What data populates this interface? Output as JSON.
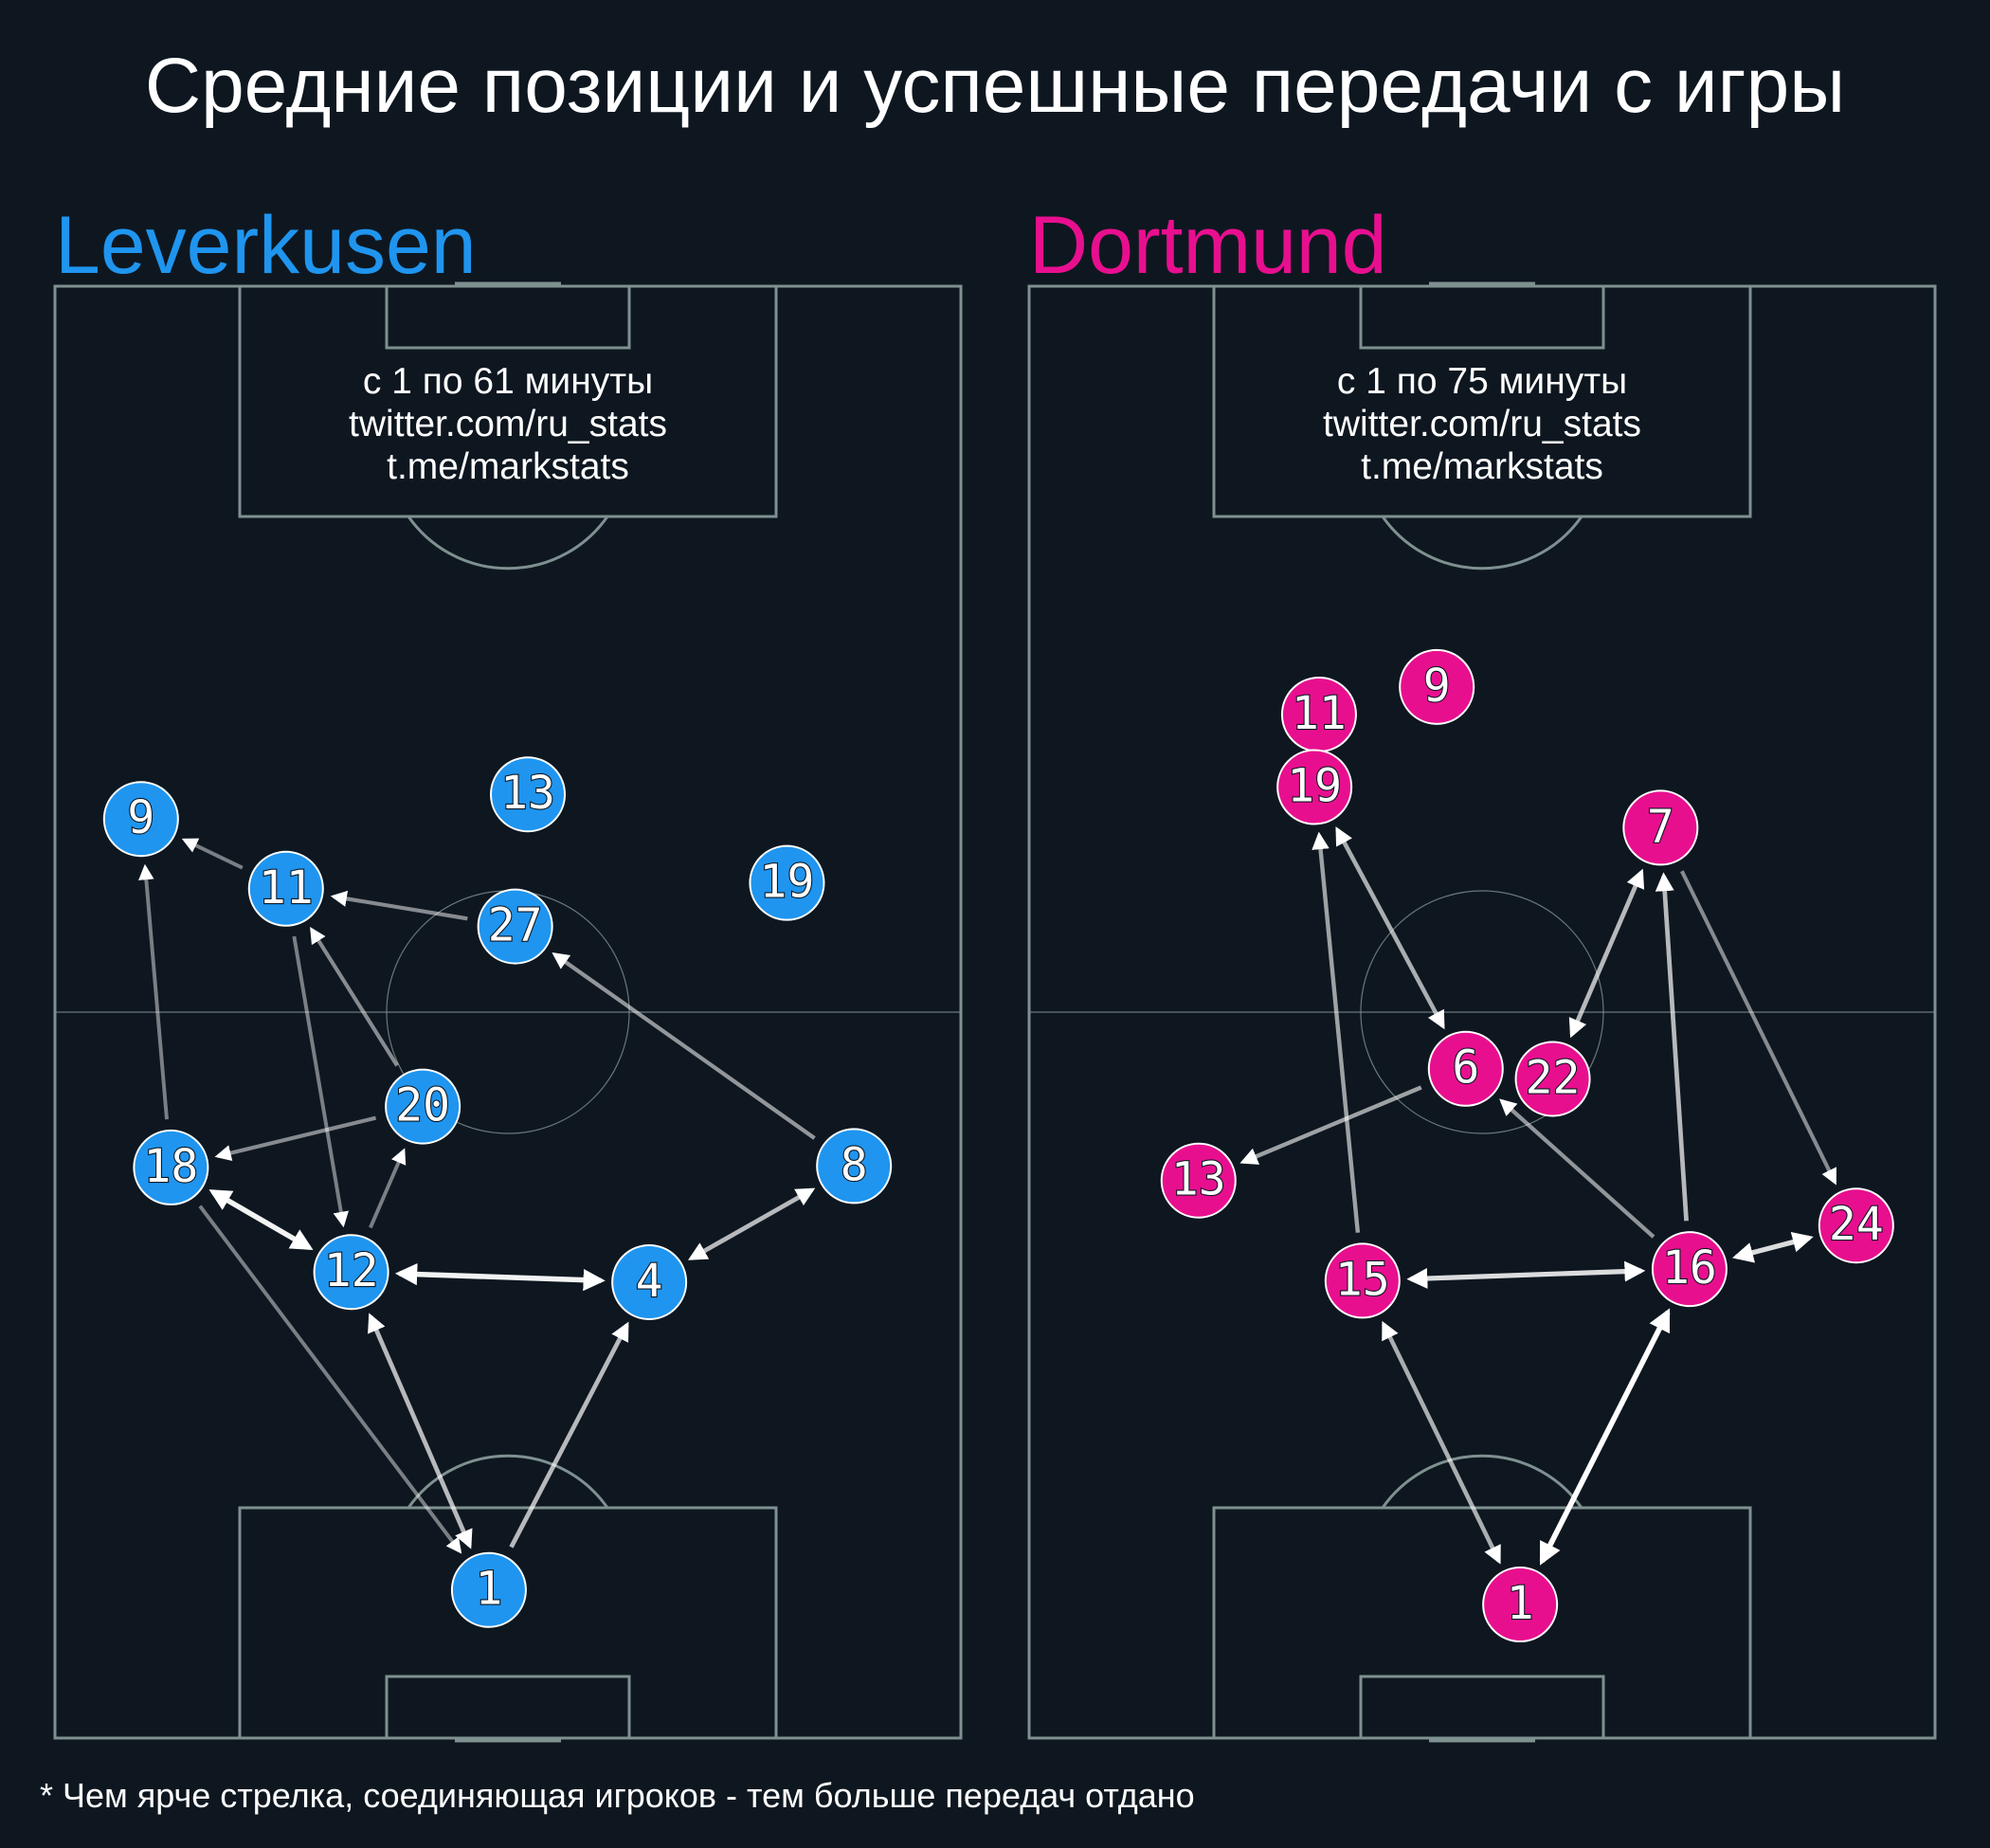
{
  "title": "Средние позиции и успешные передачи с игры",
  "footnote": "* Чем ярче стрелка, соединяющая игроков - тем больше передач отдано",
  "colors": {
    "background": "#0e1720",
    "pitch_lines": "#7f9090",
    "left_team": "#1f95ef",
    "right_team": "#e80f8f",
    "arrow": "#ffffff"
  },
  "chart_data": [
    {
      "type": "pass-network",
      "team": "Leverkusen",
      "color": "#1f95ef",
      "notes": [
        "с 1 по 61 минуты",
        "twitter.com/ru_stats",
        "t.me/markstats"
      ],
      "x_range": [
        0,
        100
      ],
      "y_range": [
        0,
        100
      ],
      "players": [
        {
          "id": "9",
          "x": 9.5,
          "y": 36.7
        },
        {
          "id": "13",
          "x": 52.2,
          "y": 35.0
        },
        {
          "id": "19",
          "x": 80.8,
          "y": 41.1
        },
        {
          "id": "11",
          "x": 25.5,
          "y": 41.5
        },
        {
          "id": "27",
          "x": 50.8,
          "y": 44.1
        },
        {
          "id": "20",
          "x": 40.6,
          "y": 56.5
        },
        {
          "id": "18",
          "x": 12.8,
          "y": 60.7
        },
        {
          "id": "8",
          "x": 88.2,
          "y": 60.6
        },
        {
          "id": "12",
          "x": 32.7,
          "y": 67.9
        },
        {
          "id": "4",
          "x": 65.6,
          "y": 68.6
        },
        {
          "id": "1",
          "x": 47.9,
          "y": 89.8
        }
      ],
      "passes": [
        {
          "from": "18",
          "to": "9",
          "intensity": 0.45
        },
        {
          "from": "11",
          "to": "9",
          "intensity": 0.45
        },
        {
          "from": "27",
          "to": "11",
          "intensity": 0.5
        },
        {
          "from": "20",
          "to": "11",
          "intensity": 0.5
        },
        {
          "from": "11",
          "to": "12",
          "intensity": 0.45
        },
        {
          "from": "8",
          "to": "27",
          "intensity": 0.55
        },
        {
          "from": "20",
          "to": "18",
          "intensity": 0.5
        },
        {
          "from": "12",
          "to": "20",
          "intensity": 0.45
        },
        {
          "from": "18",
          "to": "12",
          "intensity": 0.95,
          "both": true
        },
        {
          "from": "12",
          "to": "4",
          "intensity": 0.95,
          "both": true
        },
        {
          "from": "4",
          "to": "8",
          "intensity": 0.7,
          "both": true
        },
        {
          "from": "18",
          "to": "1",
          "intensity": 0.45
        },
        {
          "from": "1",
          "to": "12",
          "intensity": 0.7,
          "both": true
        },
        {
          "from": "1",
          "to": "4",
          "intensity": 0.7
        }
      ]
    },
    {
      "type": "pass-network",
      "team": "Dortmund",
      "color": "#e80f8f",
      "notes": [
        "с 1 по 75 минуты",
        "twitter.com/ru_stats",
        "t.me/markstats"
      ],
      "x_range": [
        0,
        100
      ],
      "y_range": [
        0,
        100
      ],
      "players": [
        {
          "id": "9",
          "x": 45.0,
          "y": 27.6
        },
        {
          "id": "11",
          "x": 32.0,
          "y": 29.5
        },
        {
          "id": "19",
          "x": 31.5,
          "y": 34.5
        },
        {
          "id": "7",
          "x": 69.7,
          "y": 37.3
        },
        {
          "id": "6",
          "x": 48.2,
          "y": 53.9
        },
        {
          "id": "22",
          "x": 57.8,
          "y": 54.6
        },
        {
          "id": "13",
          "x": 18.7,
          "y": 61.6
        },
        {
          "id": "24",
          "x": 91.3,
          "y": 64.7
        },
        {
          "id": "16",
          "x": 72.9,
          "y": 67.7
        },
        {
          "id": "15",
          "x": 36.8,
          "y": 68.5
        },
        {
          "id": "1",
          "x": 54.2,
          "y": 90.8
        }
      ],
      "passes": [
        {
          "from": "15",
          "to": "19",
          "intensity": 0.6
        },
        {
          "from": "19",
          "to": "6",
          "intensity": 0.65,
          "both": true
        },
        {
          "from": "6",
          "to": "13",
          "intensity": 0.6
        },
        {
          "from": "16",
          "to": "6",
          "intensity": 0.55
        },
        {
          "from": "7",
          "to": "22",
          "intensity": 0.7,
          "both": true
        },
        {
          "from": "16",
          "to": "7",
          "intensity": 0.7
        },
        {
          "from": "7",
          "to": "24",
          "intensity": 0.5
        },
        {
          "from": "16",
          "to": "24",
          "intensity": 0.85,
          "both": true
        },
        {
          "from": "15",
          "to": "16",
          "intensity": 0.85,
          "both": true
        },
        {
          "from": "1",
          "to": "15",
          "intensity": 0.65,
          "both": true
        },
        {
          "from": "1",
          "to": "16",
          "intensity": 1.0,
          "both": true
        }
      ]
    }
  ]
}
